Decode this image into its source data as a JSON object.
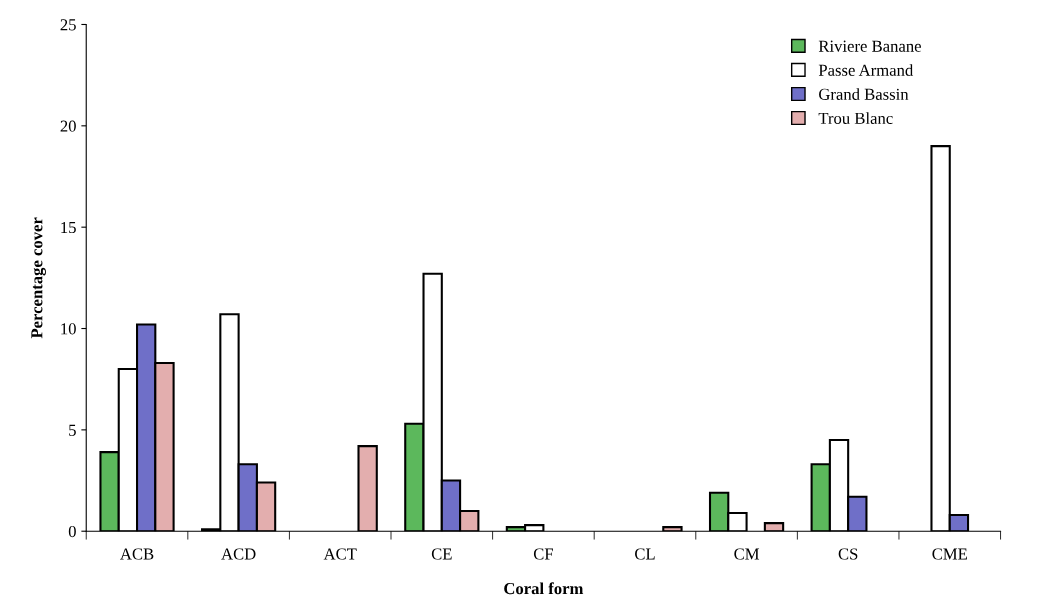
{
  "chart_data": {
    "type": "bar",
    "xlabel": "Coral form",
    "ylabel": "Percentage cover",
    "categories": [
      "ACB",
      "ACD",
      "ACT",
      "CE",
      "CF",
      "CL",
      "CM",
      "CS",
      "CME"
    ],
    "series": [
      {
        "name": "Riviere Banane",
        "color": "#5cb85c",
        "values": [
          3.9,
          0.1,
          0,
          5.3,
          0.2,
          0,
          1.9,
          3.3,
          0
        ]
      },
      {
        "name": "Passe Armand",
        "color": "#ffffff",
        "values": [
          8.0,
          10.7,
          0,
          12.7,
          0.3,
          0,
          0.9,
          4.5,
          19.0
        ]
      },
      {
        "name": "Grand Bassin",
        "color": "#6f6fc8",
        "values": [
          10.2,
          3.3,
          0,
          2.5,
          0,
          0,
          0,
          1.7,
          0.8
        ]
      },
      {
        "name": "Trou Blanc",
        "color": "#e3aeae",
        "values": [
          8.3,
          2.4,
          4.2,
          1.0,
          0,
          0.2,
          0.4,
          0,
          0
        ]
      }
    ],
    "ylim": [
      0,
      25
    ],
    "yticks": [
      0,
      5,
      10,
      15,
      20,
      25
    ],
    "grid": false,
    "legend": "top right"
  }
}
